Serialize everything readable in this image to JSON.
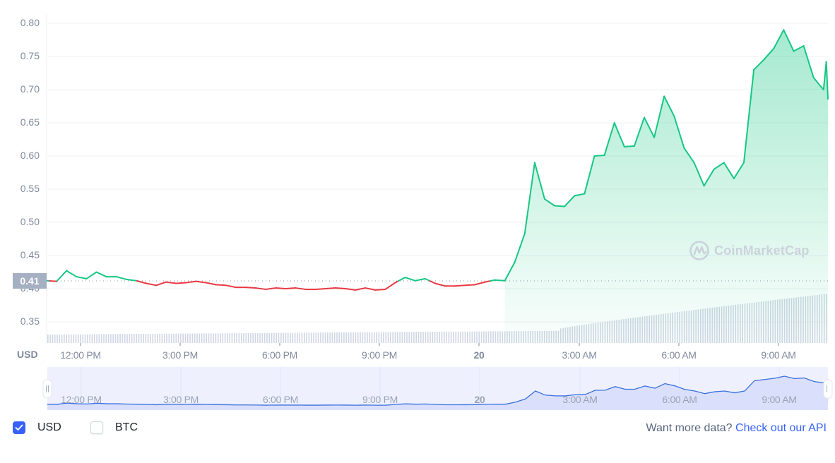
{
  "chart_data": {
    "type": "area",
    "title": "",
    "xlabel": "",
    "ylabel": "USD",
    "ylim": [
      0.32,
      0.81
    ],
    "y_ticks": [
      "0.80",
      "0.75",
      "0.70",
      "0.65",
      "0.60",
      "0.55",
      "0.50",
      "0.45",
      "0.40",
      "0.35"
    ],
    "x_ticks": [
      "12:00 PM",
      "3:00 PM",
      "6:00 PM",
      "9:00 PM",
      "20",
      "3:00 AM",
      "6:00 AM",
      "9:00 AM"
    ],
    "reference_price": 0.41,
    "grid": true,
    "legend": "none",
    "series": [
      {
        "name": "Price (USD)",
        "x_hours_from_start": [
          0,
          0.3,
          0.6,
          0.9,
          1.2,
          1.5,
          1.8,
          2.1,
          2.4,
          2.7,
          3.0,
          3.3,
          3.6,
          3.9,
          4.2,
          4.5,
          4.8,
          5.1,
          5.4,
          5.7,
          6.0,
          6.3,
          6.6,
          6.9,
          7.2,
          7.5,
          7.8,
          8.1,
          8.4,
          8.7,
          9.0,
          9.3,
          9.6,
          9.9,
          10.2,
          10.5,
          10.8,
          11.1,
          11.4,
          11.7,
          12.0,
          12.3,
          12.6,
          12.9,
          13.2,
          13.5,
          13.8,
          14.1,
          14.4,
          14.7,
          15.0,
          15.3,
          15.6,
          15.9,
          16.2,
          16.5,
          16.8,
          17.1,
          17.4,
          17.7,
          18.0,
          18.3,
          18.6,
          18.9,
          19.2,
          19.5,
          19.8,
          20.1,
          20.4,
          20.7,
          21.0,
          21.3,
          21.6,
          21.9,
          22.2,
          22.5,
          22.8,
          23.1,
          23.4
        ],
        "values": [
          0.412,
          0.411,
          0.427,
          0.418,
          0.415,
          0.425,
          0.418,
          0.418,
          0.414,
          0.412,
          0.408,
          0.405,
          0.41,
          0.408,
          0.409,
          0.411,
          0.409,
          0.406,
          0.405,
          0.402,
          0.402,
          0.401,
          0.399,
          0.401,
          0.4,
          0.401,
          0.399,
          0.399,
          0.4,
          0.401,
          0.4,
          0.398,
          0.401,
          0.398,
          0.399,
          0.409,
          0.417,
          0.412,
          0.415,
          0.408,
          0.404,
          0.404,
          0.405,
          0.406,
          0.41,
          0.413,
          0.412,
          0.44,
          0.483,
          0.59,
          0.535,
          0.525,
          0.524,
          0.54,
          0.543,
          0.6,
          0.601,
          0.65,
          0.614,
          0.615,
          0.658,
          0.628,
          0.69,
          0.66,
          0.612,
          0.59,
          0.555,
          0.58,
          0.59,
          0.566,
          0.59,
          0.73,
          0.745,
          0.762,
          0.79,
          0.758,
          0.766,
          0.718,
          0.7
        ]
      },
      {
        "name": "Price (USD) continued",
        "x_hours_from_start": [
          23.1,
          23.3
        ],
        "values": [
          0.742,
          0.686
        ]
      }
    ],
    "volume_bars": "gradually increasing from left to right, sharply from ~3:00 AM",
    "navigator": {
      "labels": [
        "12:00 PM",
        "3:00 PM",
        "6:00 PM",
        "9:00 PM",
        "20",
        "3:00 AM",
        "6:00 AM",
        "9:00 AM"
      ]
    }
  },
  "axis": {
    "y_labels": [
      "0.80",
      "0.75",
      "0.70",
      "0.65",
      "0.60",
      "0.55",
      "0.50",
      "0.45",
      "0.40",
      "0.35"
    ],
    "unit": "USD",
    "current_price_badge": "0.41",
    "x_labels": [
      "12:00 PM",
      "3:00 PM",
      "6:00 PM",
      "9:00 PM",
      "20",
      "3:00 AM",
      "6:00 AM",
      "9:00 AM"
    ]
  },
  "watermark": {
    "text": "CoinMarketCap"
  },
  "navigator": {
    "labels": [
      "12:00 PM",
      "3:00 PM",
      "6:00 PM",
      "9:00 PM",
      "20",
      "3:00 AM",
      "6:00 AM",
      "9:00 AM"
    ]
  },
  "currency_toggles": [
    {
      "label": "USD",
      "checked": true
    },
    {
      "label": "BTC",
      "checked": false
    }
  ],
  "footer": {
    "prompt": "Want more data?",
    "link_label": "Check out our API"
  },
  "colors": {
    "up": "#16c784",
    "down": "#ea3943",
    "accent": "#3861fb",
    "navigator_line": "#3a6fe0",
    "navigator_bg": "#eef1fd",
    "axis_text": "#808a9d",
    "volume": "#cfd6e4"
  }
}
